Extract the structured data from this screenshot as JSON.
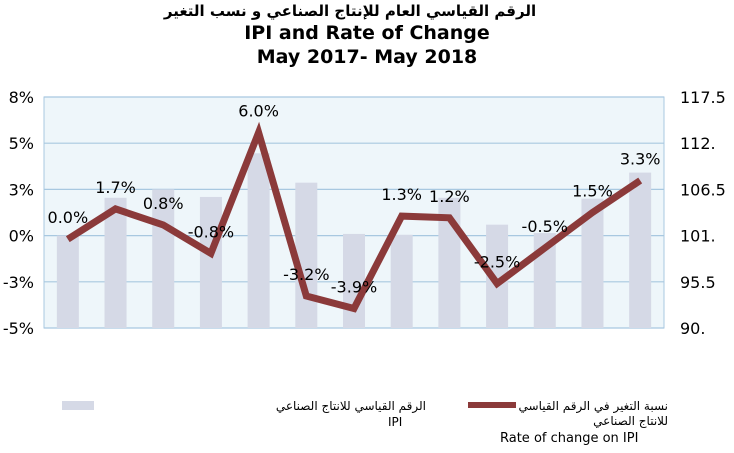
{
  "title_arabic": "الرقم القياسي العام للإنتاج الصناعي و نسب التغير",
  "title": "IPI and Rate of Change",
  "subtitle": "May 2017- May 2018",
  "chart_data": {
    "type": "bar+line",
    "left_axis": {
      "ticks": [
        "8%",
        "5%",
        "3%",
        "0%",
        "-3%",
        "-5%"
      ],
      "min": -5,
      "max": 8
    },
    "right_axis": {
      "ticks": [
        "117.5",
        "112.",
        "106.5",
        "101.",
        "95.5",
        "90."
      ],
      "min": 90,
      "max": 117.5
    },
    "bar_series": {
      "name": "IPI",
      "name_arabic": "الرقم القياسي للانتاج الصناعي",
      "color": "#d5d9e6",
      "axis": "right",
      "values": [
        101.0,
        105.5,
        106.5,
        105.6,
        110.8,
        107.3,
        101.2,
        101.1,
        105.5,
        102.3,
        101.3,
        105.4,
        108.5
      ]
    },
    "line_series": {
      "name": "Rate of change on IPI",
      "name_arabic": "نسبة التغير في الرقم القياسي للانتاج الصناعي",
      "color": "#8b3a3a",
      "axis": "left",
      "values": [
        0.0,
        1.7,
        0.8,
        -0.8,
        6.0,
        -3.2,
        -3.9,
        1.3,
        1.2,
        -2.5,
        -0.5,
        1.5,
        3.3
      ],
      "labels": [
        "0.0%",
        "1.7%",
        "0.8%",
        "-0.8%",
        "6.0%",
        "-3.2%",
        "-3.9%",
        "1.3%",
        "1.2%",
        "-2.5%",
        "-0.5%",
        "1.5%",
        "3.3%"
      ]
    },
    "grid": true,
    "plot_background": "#eef6fa",
    "grid_color": "#a8c8e0"
  },
  "legend": {
    "bar_label_arabic": "الرقم القياسي للانتاج الصناعي",
    "bar_label": "IPI",
    "line_label_arabic_1": "نسبة التغير في الرقم القياسي",
    "line_label_arabic_2": "للانتاج الصناعي",
    "line_label": "Rate of change on IPI"
  }
}
